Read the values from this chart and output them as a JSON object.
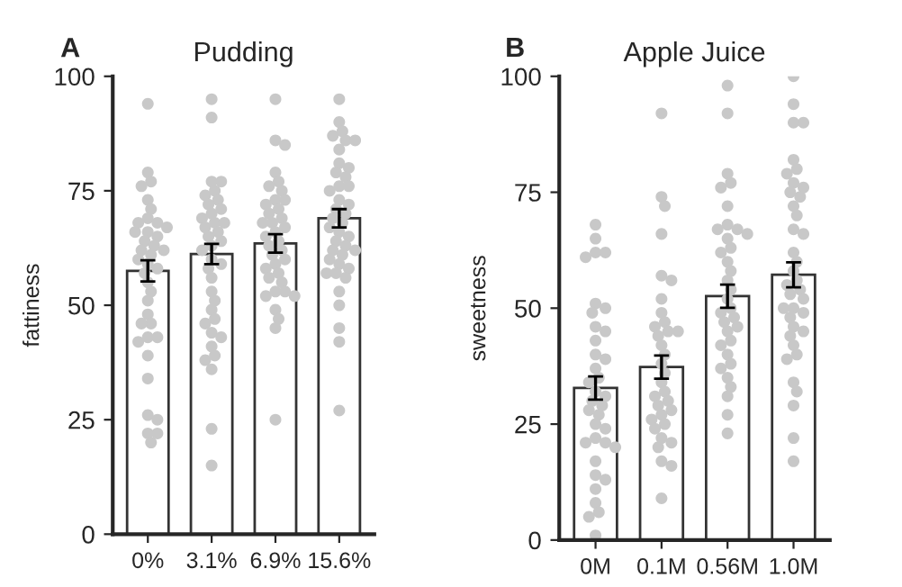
{
  "chart_data": [
    {
      "type": "bar",
      "title": "Pudding",
      "ylabel": "fattiness",
      "annotations": [
        "A"
      ],
      "categories": [
        "0%",
        "3.1%",
        "6.9%",
        "15.6%"
      ],
      "ylim": [
        0,
        100
      ],
      "yticks": [
        0,
        25,
        50,
        75,
        100
      ],
      "grid": false,
      "legend": false,
      "series": [
        {
          "color": "#ffffff",
          "values": [
            57.5,
            61.2,
            63.5,
            69
          ],
          "errors": [
            2.3,
            2.2,
            2,
            2
          ]
        },
        {
          "type": "scatter",
          "color": "#c8c8c8",
          "x": [
            "0%",
            "0%",
            "0%",
            "0%",
            "0%",
            "0%",
            "0%",
            "0%",
            "0%",
            "0%",
            "0%",
            "0%",
            "0%",
            "0%",
            "0%",
            "0%",
            "0%",
            "0%",
            "0%",
            "0%",
            "0%",
            "0%",
            "0%",
            "0%",
            "0%",
            "0%",
            "0%",
            "0%",
            "0%",
            "0%",
            "0%",
            "0%",
            "0%",
            "0%",
            "0%",
            "0%",
            "0%",
            "0%",
            "3.1%",
            "3.1%",
            "3.1%",
            "3.1%",
            "3.1%",
            "3.1%",
            "3.1%",
            "3.1%",
            "3.1%",
            "3.1%",
            "3.1%",
            "3.1%",
            "3.1%",
            "3.1%",
            "3.1%",
            "3.1%",
            "3.1%",
            "3.1%",
            "3.1%",
            "3.1%",
            "3.1%",
            "3.1%",
            "3.1%",
            "3.1%",
            "3.1%",
            "3.1%",
            "3.1%",
            "3.1%",
            "3.1%",
            "3.1%",
            "3.1%",
            "3.1%",
            "3.1%",
            "3.1%",
            "3.1%",
            "3.1%",
            "6.9%",
            "6.9%",
            "6.9%",
            "6.9%",
            "6.9%",
            "6.9%",
            "6.9%",
            "6.9%",
            "6.9%",
            "6.9%",
            "6.9%",
            "6.9%",
            "6.9%",
            "6.9%",
            "6.9%",
            "6.9%",
            "6.9%",
            "6.9%",
            "6.9%",
            "6.9%",
            "6.9%",
            "6.9%",
            "6.9%",
            "6.9%",
            "6.9%",
            "6.9%",
            "6.9%",
            "6.9%",
            "6.9%",
            "6.9%",
            "6.9%",
            "6.9%",
            "6.9%",
            "6.9%",
            "6.9%",
            "6.9%",
            "15.6%",
            "15.6%",
            "15.6%",
            "15.6%",
            "15.6%",
            "15.6%",
            "15.6%",
            "15.6%",
            "15.6%",
            "15.6%",
            "15.6%",
            "15.6%",
            "15.6%",
            "15.6%",
            "15.6%",
            "15.6%",
            "15.6%",
            "15.6%",
            "15.6%",
            "15.6%",
            "15.6%",
            "15.6%",
            "15.6%",
            "15.6%",
            "15.6%",
            "15.6%",
            "15.6%",
            "15.6%",
            "15.6%",
            "15.6%",
            "15.6%",
            "15.6%",
            "15.6%",
            "15.6%",
            "15.6%",
            "15.6%",
            "15.6%",
            "15.6%",
            "15.6%"
          ],
          "values": [
            94,
            79,
            77,
            76,
            73,
            71,
            69,
            68,
            68,
            67,
            66,
            66,
            65,
            64,
            63,
            62,
            62,
            61,
            60,
            59,
            58,
            57,
            55,
            53,
            51,
            48,
            46,
            46,
            43,
            43,
            42,
            39,
            34,
            26,
            25,
            22,
            22,
            20,
            95,
            91,
            77,
            77,
            75,
            74,
            73,
            72,
            71,
            70,
            69,
            68,
            68,
            67,
            66,
            65,
            64,
            63,
            62,
            60,
            59,
            58,
            56,
            53,
            51,
            49,
            47,
            46,
            44,
            43,
            41,
            39,
            38,
            36,
            23,
            15,
            95,
            86,
            85,
            79,
            77,
            76,
            75,
            73,
            73,
            72,
            71,
            70,
            69,
            68,
            68,
            67,
            66,
            65,
            64,
            63,
            62,
            61,
            60,
            59,
            58,
            57,
            56,
            55,
            53,
            53,
            52,
            52,
            49,
            47,
            45,
            25,
            95,
            90,
            88,
            87,
            86,
            86,
            84,
            81,
            80,
            79,
            78,
            76,
            76,
            75,
            73,
            72,
            71,
            70,
            69,
            68,
            67,
            66,
            65,
            64,
            63,
            62,
            62,
            61,
            60,
            59,
            58,
            57,
            57,
            56,
            53,
            50,
            45,
            42,
            27
          ]
        }
      ]
    },
    {
      "type": "bar",
      "title": "Apple Juice",
      "ylabel": "sweetness",
      "annotations": [
        "B"
      ],
      "categories": [
        "0M",
        "0.1M",
        "0.56M",
        "1.0M"
      ],
      "ylim": [
        0,
        100
      ],
      "yticks": [
        0,
        25,
        50,
        75,
        100
      ],
      "grid": false,
      "legend": false,
      "series": [
        {
          "color": "#ffffff",
          "values": [
            32.8,
            37.3,
            52.6,
            57.2
          ],
          "errors": [
            2.5,
            2.5,
            2.5,
            2.7
          ]
        },
        {
          "type": "scatter",
          "color": "#c8c8c8",
          "x": [
            "0M",
            "0M",
            "0M",
            "0M",
            "0M",
            "0M",
            "0M",
            "0M",
            "0M",
            "0M",
            "0M",
            "0M",
            "0M",
            "0M",
            "0M",
            "0M",
            "0M",
            "0M",
            "0M",
            "0M",
            "0M",
            "0M",
            "0M",
            "0M",
            "0M",
            "0M",
            "0M",
            "0M",
            "0M",
            "0M",
            "0M",
            "0M",
            "0M",
            "0M",
            "0M",
            "0M",
            "0.1M",
            "0.1M",
            "0.1M",
            "0.1M",
            "0.1M",
            "0.1M",
            "0.1M",
            "0.1M",
            "0.1M",
            "0.1M",
            "0.1M",
            "0.1M",
            "0.1M",
            "0.1M",
            "0.1M",
            "0.1M",
            "0.1M",
            "0.1M",
            "0.1M",
            "0.1M",
            "0.1M",
            "0.1M",
            "0.1M",
            "0.1M",
            "0.1M",
            "0.1M",
            "0.1M",
            "0.1M",
            "0.1M",
            "0.1M",
            "0.1M",
            "0.1M",
            "0.1M",
            "0.56M",
            "0.56M",
            "0.56M",
            "0.56M",
            "0.56M",
            "0.56M",
            "0.56M",
            "0.56M",
            "0.56M",
            "0.56M",
            "0.56M",
            "0.56M",
            "0.56M",
            "0.56M",
            "0.56M",
            "0.56M",
            "0.56M",
            "0.56M",
            "0.56M",
            "0.56M",
            "0.56M",
            "0.56M",
            "0.56M",
            "0.56M",
            "0.56M",
            "0.56M",
            "0.56M",
            "0.56M",
            "0.56M",
            "0.56M",
            "0.56M",
            "0.56M",
            "0.56M",
            "0.56M",
            "1.0M",
            "1.0M",
            "1.0M",
            "1.0M",
            "1.0M",
            "1.0M",
            "1.0M",
            "1.0M",
            "1.0M",
            "1.0M",
            "1.0M",
            "1.0M",
            "1.0M",
            "1.0M",
            "1.0M",
            "1.0M",
            "1.0M",
            "1.0M",
            "1.0M",
            "1.0M",
            "1.0M",
            "1.0M",
            "1.0M",
            "1.0M",
            "1.0M",
            "1.0M",
            "1.0M",
            "1.0M",
            "1.0M",
            "1.0M",
            "1.0M",
            "1.0M",
            "1.0M",
            "1.0M",
            "1.0M",
            "1.0M",
            "1.0M",
            "1.0M"
          ],
          "values": [
            68,
            65,
            62,
            62,
            61,
            51,
            50,
            49,
            46,
            45,
            43,
            40,
            39,
            37,
            35,
            34,
            32,
            31,
            30,
            29,
            28,
            27,
            25,
            24,
            22,
            21,
            21,
            20,
            17,
            14,
            13,
            11,
            8,
            6,
            5,
            1,
            92,
            74,
            72,
            66,
            57,
            56,
            52,
            49,
            47,
            46,
            45,
            45,
            44,
            42,
            40,
            38,
            36,
            34,
            32,
            31,
            30,
            29,
            28,
            27,
            26,
            25,
            24,
            22,
            21,
            20,
            17,
            16,
            9,
            98,
            92,
            79,
            77,
            76,
            72,
            68,
            67,
            67,
            66,
            65,
            63,
            62,
            60,
            58,
            56,
            54,
            52,
            50,
            49,
            48,
            47,
            46,
            45,
            43,
            42,
            40,
            38,
            37,
            35,
            33,
            31,
            27,
            23,
            100,
            94,
            90,
            90,
            82,
            80,
            79,
            77,
            76,
            75,
            74,
            72,
            70,
            67,
            66,
            62,
            60,
            58,
            56,
            55,
            54,
            53,
            52,
            50,
            50,
            49,
            48,
            46,
            45,
            44,
            42,
            40,
            39,
            34,
            32,
            29,
            22,
            17
          ]
        }
      ]
    }
  ]
}
